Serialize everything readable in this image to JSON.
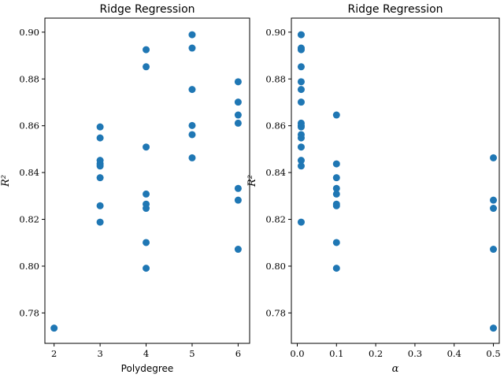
{
  "chart_data": [
    {
      "type": "scatter",
      "title": "Ridge Regression",
      "xlabel": "Polydegree",
      "ylabel": "R²",
      "xlim": [
        1.8,
        6.25
      ],
      "ylim": [
        0.767,
        0.906
      ],
      "xticks": [
        "2",
        "3",
        "4",
        "5",
        "6"
      ],
      "yticks": [
        "0.78",
        "0.80",
        "0.82",
        "0.84",
        "0.86",
        "0.88",
        "0.90"
      ],
      "marker_color": "#1f77b4",
      "grid": false,
      "series": [
        {
          "x": [
            2,
            3,
            3,
            3,
            3,
            3,
            3,
            3,
            3,
            4,
            4,
            4,
            4,
            4,
            4,
            4,
            4,
            5,
            5,
            5,
            5,
            5,
            5,
            6,
            6,
            6,
            6,
            6,
            6,
            6
          ],
          "y": [
            0.7735,
            0.8595,
            0.8548,
            0.8452,
            0.8437,
            0.8428,
            0.8378,
            0.8258,
            0.8188,
            0.8101,
            0.8925,
            0.8852,
            0.8509,
            0.8308,
            0.8265,
            0.8247,
            0.7991,
            0.8989,
            0.8932,
            0.8755,
            0.8601,
            0.8562,
            0.8463,
            0.8788,
            0.8701,
            0.8646,
            0.8611,
            0.8332,
            0.8282,
            0.8072
          ]
        }
      ]
    },
    {
      "type": "scatter",
      "title": "Ridge Regression",
      "xlabel": "α",
      "ylabel": "R²",
      "xlim": [
        -0.015,
        0.515
      ],
      "ylim": [
        0.767,
        0.906
      ],
      "xticks": [
        "0.0",
        "0.1",
        "0.2",
        "0.3",
        "0.4",
        "0.5"
      ],
      "yticks": [
        "0.78",
        "0.80",
        "0.82",
        "0.84",
        "0.86",
        "0.88",
        "0.90"
      ],
      "marker_color": "#1f77b4",
      "grid": false,
      "series": [
        {
          "x": [
            0.01,
            0.01,
            0.01,
            0.01,
            0.01,
            0.01,
            0.01,
            0.01,
            0.01,
            0.01,
            0.01,
            0.01,
            0.01,
            0.01,
            0.01,
            0.01,
            0.1,
            0.1,
            0.1,
            0.1,
            0.1,
            0.1,
            0.1,
            0.1,
            0.1,
            0.5,
            0.5,
            0.5,
            0.5,
            0.5
          ],
          "y": [
            0.8989,
            0.8932,
            0.8925,
            0.8852,
            0.8788,
            0.8755,
            0.8701,
            0.8611,
            0.8601,
            0.8595,
            0.8562,
            0.8548,
            0.8509,
            0.8452,
            0.8428,
            0.8188,
            0.8646,
            0.8437,
            0.8378,
            0.8332,
            0.8308,
            0.8265,
            0.8258,
            0.8101,
            0.7991,
            0.8463,
            0.8282,
            0.8247,
            0.8072,
            0.7735
          ]
        }
      ]
    }
  ]
}
